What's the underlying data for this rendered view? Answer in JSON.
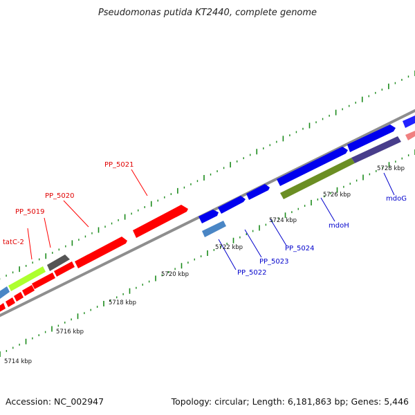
{
  "title": "Pseudomonas putida KT2440, complete genome",
  "footer": {
    "accession": "Accession: NC_002947",
    "summary": "Topology: circular; Length: 6,181,863 bp; Genes: 5,446"
  },
  "colors": {
    "backbone": "#909090",
    "tick": "#1a8a1a",
    "forward_gene": "#0000ee",
    "reverse_gene": "#ff0000",
    "red_label": "#e00000",
    "blue_label": "#0000cc"
  },
  "scale_labels": [
    "5714 kbp",
    "5716 kbp",
    "5718 kbp",
    "5720 kbp",
    "5722 kbp",
    "5724 kbp",
    "5726 kbp",
    "5728 kbp"
  ],
  "gene_labels": {
    "reverse": [
      "tatC-2",
      "PP_5019",
      "PP_5020",
      "PP_5021"
    ],
    "forward": [
      "PP_5022",
      "PP_5023",
      "PP_5024",
      "mdoH",
      "mdoG"
    ]
  }
}
